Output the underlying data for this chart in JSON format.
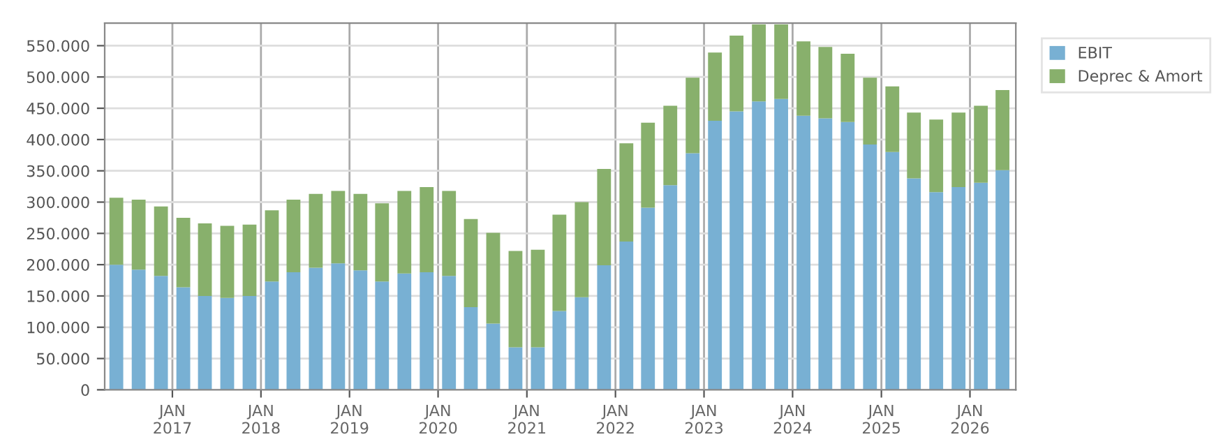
{
  "chart_data": {
    "type": "bar",
    "stacked": true,
    "x": [
      "2016-05-15",
      "2016-08-15",
      "2016-11-15",
      "2017-02-15",
      "2017-05-15",
      "2017-08-15",
      "2017-11-15",
      "2018-02-15",
      "2018-05-15",
      "2018-08-15",
      "2018-11-15",
      "2019-02-15",
      "2019-05-15",
      "2019-08-15",
      "2019-11-15",
      "2020-02-15",
      "2020-05-15",
      "2020-08-15",
      "2020-11-15",
      "2021-02-15",
      "2021-05-15",
      "2021-08-15",
      "2021-11-15",
      "2022-02-15",
      "2022-05-15",
      "2022-08-15",
      "2022-11-15",
      "2023-02-15",
      "2023-05-15",
      "2023-08-15",
      "2023-11-15",
      "2024-02-15",
      "2024-05-15",
      "2024-08-15",
      "2024-11-15",
      "2025-02-15",
      "2025-05-15",
      "2025-08-15",
      "2025-11-15",
      "2026-02-15",
      "2026-05-15"
    ],
    "series": [
      {
        "name": "EBIT",
        "color": "#78b0d3",
        "values": [
          200000,
          192000,
          182000,
          164000,
          150000,
          147000,
          150000,
          173000,
          188000,
          195000,
          202000,
          191000,
          173000,
          186000,
          188000,
          182000,
          132000,
          106000,
          68000,
          68000,
          126000,
          148000,
          199000,
          237000,
          291000,
          327000,
          378000,
          430000,
          445000,
          461000,
          465000,
          438000,
          434000,
          428000,
          392000,
          380000,
          338000,
          316000,
          324000,
          331000,
          351000
        ]
      },
      {
        "name": "Deprec & Amort",
        "color": "#88b06c",
        "values": [
          107000,
          112000,
          111000,
          111000,
          116000,
          115000,
          114000,
          114000,
          116000,
          118000,
          116000,
          122000,
          125000,
          132000,
          136000,
          136000,
          141000,
          145000,
          154000,
          156000,
          154000,
          152000,
          154000,
          157000,
          136000,
          127000,
          121000,
          109000,
          121000,
          123000,
          119000,
          119000,
          114000,
          109000,
          107000,
          105000,
          105000,
          116000,
          119000,
          123000,
          128000
        ]
      }
    ],
    "xlim": [
      "2016-03-28",
      "2026-07-09"
    ],
    "xticks": [
      {
        "value": "2017-01-01",
        "label": "JAN\n2017"
      },
      {
        "value": "2018-01-01",
        "label": "JAN\n2018"
      },
      {
        "value": "2019-01-01",
        "label": "JAN\n2019"
      },
      {
        "value": "2020-01-01",
        "label": "JAN\n2020"
      },
      {
        "value": "2021-01-01",
        "label": "JAN\n2021"
      },
      {
        "value": "2022-01-01",
        "label": "JAN\n2022"
      },
      {
        "value": "2023-01-01",
        "label": "JAN\n2023"
      },
      {
        "value": "2024-01-01",
        "label": "JAN\n2024"
      },
      {
        "value": "2025-01-01",
        "label": "JAN\n2025"
      },
      {
        "value": "2026-01-01",
        "label": "JAN\n2026"
      }
    ],
    "ylim": [
      0,
      586000
    ],
    "yticks": [
      0,
      {
        "value": 50000,
        "label": "50.000"
      },
      {
        "value": 100000,
        "label": "100.000"
      },
      {
        "value": 150000,
        "label": "150.000"
      },
      {
        "value": 200000,
        "label": "200.000"
      },
      {
        "value": 250000,
        "label": "250.000"
      },
      {
        "value": 300000,
        "label": "300.000"
      },
      {
        "value": 350000,
        "label": "350.000"
      },
      {
        "value": 400000,
        "label": "400.000"
      },
      {
        "value": 450000,
        "label": "450.000"
      },
      {
        "value": 500000,
        "label": "500.000"
      },
      {
        "value": 550000,
        "label": "550.000"
      }
    ],
    "grid": true,
    "legend": "top right"
  }
}
